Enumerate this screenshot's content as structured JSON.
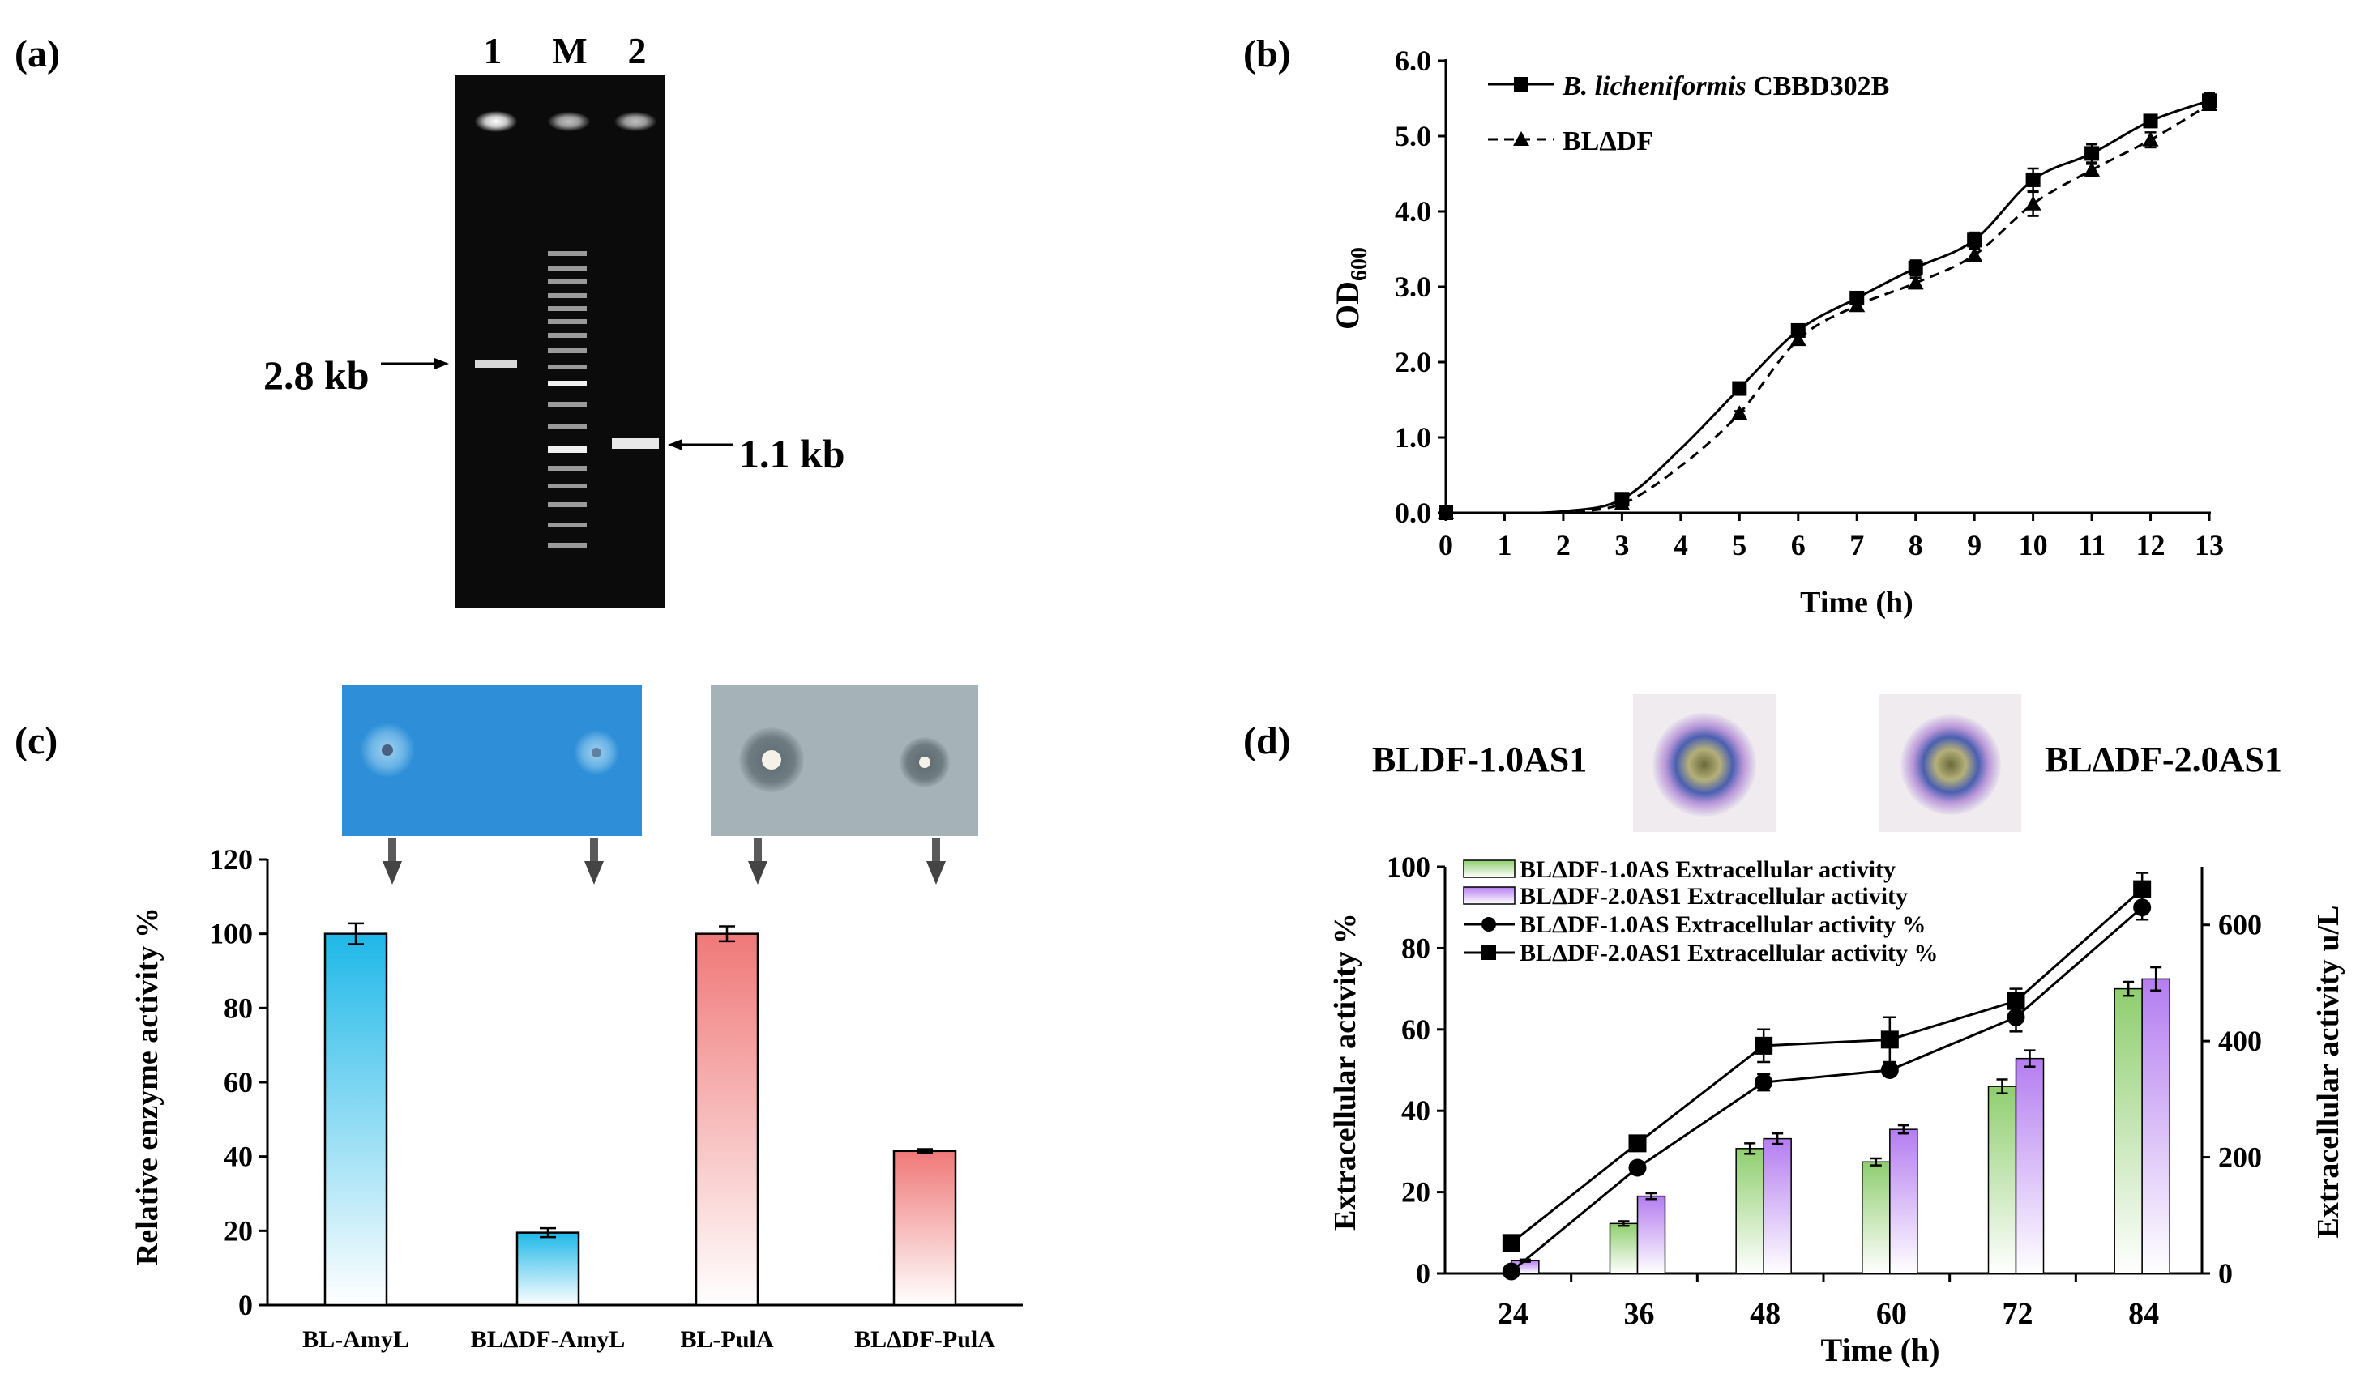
{
  "panels": {
    "a": {
      "label": "(a)",
      "lanes": [
        "1",
        "M",
        "2"
      ],
      "band_labels": [
        "2.8 kb",
        "1.1 kb"
      ]
    },
    "b": {
      "label": "(b)"
    },
    "c": {
      "label": "(c)"
    },
    "d": {
      "label": "(d)",
      "photo_labels": [
        "BLDF-1.0AS1",
        "BLΔDF-2.0AS1"
      ]
    }
  },
  "colors": {
    "blue_bar": "#1fb8e8",
    "red_bar": "#f07878",
    "green_bar": "#8fce6f",
    "purple_bar": "#b47df0",
    "line": "#000000"
  },
  "chart_data": [
    {
      "id": "b",
      "type": "line",
      "title": "",
      "xlabel": "Time (h)",
      "ylabel": "OD600",
      "ylabel_main": "OD",
      "ylabel_sub": "600",
      "x": [
        0,
        1,
        2,
        3,
        4,
        5,
        6,
        7,
        8,
        9,
        10,
        11,
        12,
        13
      ],
      "xlim": [
        0,
        13
      ],
      "ylim": [
        0,
        6
      ],
      "xticks": [
        "0",
        "1",
        "2",
        "3",
        "4",
        "5",
        "6",
        "7",
        "8",
        "9",
        "10",
        "11",
        "12",
        "13"
      ],
      "yticks": [
        "0.0",
        "1.0",
        "2.0",
        "3.0",
        "4.0",
        "5.0",
        "6.0"
      ],
      "legend_position": "top-left",
      "series": [
        {
          "name": "B. licheniformis CBBD302B",
          "name_italic": "B. licheniformis",
          "name_rest": " CBBD302B",
          "marker": "square",
          "dash": "solid",
          "marker_x": [
            0,
            3,
            5,
            6,
            7,
            8,
            9,
            10,
            11,
            12,
            13
          ],
          "marker_y": [
            0.0,
            0.18,
            1.65,
            2.42,
            2.85,
            3.25,
            3.62,
            4.42,
            4.77,
            5.2,
            5.47
          ],
          "marker_err": [
            0,
            0.04,
            0.03,
            0.05,
            0.06,
            0.1,
            0.1,
            0.15,
            0.12,
            0.07,
            0.1
          ],
          "x": [
            0,
            1,
            2,
            3,
            4,
            5,
            6,
            7,
            8,
            9,
            10,
            11,
            12,
            13
          ],
          "y": [
            0.0,
            0.0,
            0.02,
            0.18,
            0.85,
            1.65,
            2.42,
            2.85,
            3.25,
            3.62,
            4.42,
            4.77,
            5.2,
            5.47
          ]
        },
        {
          "name": "BLΔDF",
          "marker": "triangle",
          "dash": "dashed",
          "marker_x": [
            0,
            3,
            5,
            6,
            7,
            8,
            9,
            10,
            11,
            12,
            13
          ],
          "marker_y": [
            0.0,
            0.12,
            1.32,
            2.3,
            2.75,
            3.05,
            3.42,
            4.1,
            4.55,
            4.95,
            5.42
          ],
          "marker_err": [
            0,
            0.03,
            0.03,
            0.05,
            0.05,
            0.07,
            0.08,
            0.16,
            0.08,
            0.1,
            0.07
          ],
          "x": [
            0,
            1,
            2,
            3,
            4,
            5,
            6,
            7,
            8,
            9,
            10,
            11,
            12,
            13
          ],
          "y": [
            0.0,
            0.0,
            0.01,
            0.12,
            0.62,
            1.32,
            2.3,
            2.75,
            3.05,
            3.42,
            4.1,
            4.55,
            4.95,
            5.42
          ]
        }
      ]
    },
    {
      "id": "c",
      "type": "bar",
      "title": "",
      "xlabel": "",
      "ylabel": "Relative enzyme activity %",
      "categories": [
        "BL-AmyL",
        "BLΔDF-AmyL",
        "BL-PulA",
        "BLΔDF-PulA"
      ],
      "values": [
        100,
        19.5,
        100,
        41.5
      ],
      "errors": [
        2.8,
        1.2,
        2.0,
        0.5
      ],
      "bar_colors": [
        "blue",
        "blue",
        "red",
        "red"
      ],
      "ylim": [
        0,
        120
      ],
      "yticks": [
        "0",
        "20",
        "40",
        "60",
        "80",
        "100",
        "120"
      ]
    },
    {
      "id": "d",
      "type": "bar",
      "title": "",
      "xlabel": "Time (h)",
      "ylabel": "Extracellular  activity %",
      "ylabel_right": "Extracellular  activity u/L",
      "categories": [
        "24",
        "36",
        "48",
        "60",
        "72",
        "84"
      ],
      "ylim": [
        0,
        100
      ],
      "ylim_right": [
        0,
        700
      ],
      "yticks": [
        "0",
        "20",
        "40",
        "60",
        "80",
        "100"
      ],
      "yticks_right": [
        "0",
        "200",
        "400",
        "600"
      ],
      "legend_position": "top-left",
      "series": [
        {
          "name": "BLΔDF-1.0AS Extracellular  activity",
          "kind": "bar",
          "axis": "right",
          "color": "green",
          "values": [
            0,
            86,
            215,
            192,
            322,
            490
          ],
          "errors": [
            0,
            4,
            9,
            6,
            12,
            12
          ]
        },
        {
          "name": "BLΔDF-2.0AS1 Extracellular  activity",
          "kind": "bar",
          "axis": "right",
          "color": "purple",
          "values": [
            22,
            133,
            232,
            248,
            370,
            507
          ],
          "errors": [
            2,
            5,
            9,
            7,
            14,
            20
          ]
        },
        {
          "name": "BLΔDF-1.0AS Extracellular  activity %",
          "kind": "line",
          "axis": "left",
          "marker": "circle",
          "values": [
            0.5,
            26,
            47,
            50,
            63,
            90
          ],
          "errors": [
            0,
            1.2,
            2,
            1.5,
            3.5,
            3
          ]
        },
        {
          "name": "BLΔDF-2.0AS1 Extracellular  activity %",
          "kind": "line",
          "axis": "left",
          "marker": "square",
          "values": [
            7.5,
            32,
            56,
            57.5,
            67,
            94.5
          ],
          "errors": [
            0,
            1.2,
            4,
            5.5,
            3,
            4
          ]
        }
      ]
    }
  ]
}
